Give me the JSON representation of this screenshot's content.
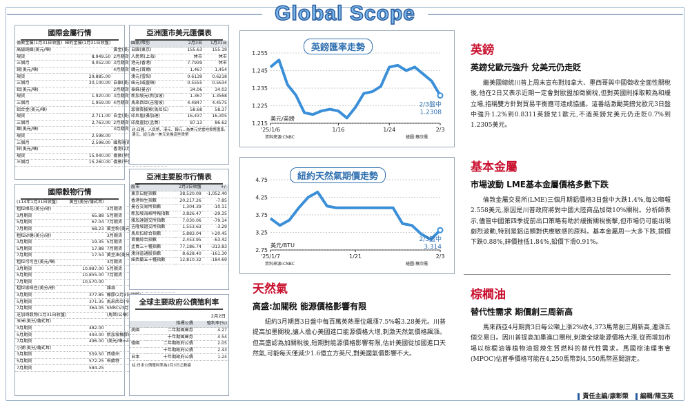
{
  "masthead": "Global Scope",
  "fx_panel": {
    "title": "國際金屬行情",
    "rows": [
      [
        "倫敦金屬(1月31日收盤)",
        "紐約金屬(1月31日收盤)",
        ""
      ],
      [
        "高級銅線(美元/噸)",
        "",
        "黃金(美元/盎司)"
      ],
      [
        "現貨",
        "8,949.50",
        "2月期貨",
        "2,812.50"
      ],
      [
        "三個月",
        "9,052.00",
        "3月期貨",
        "2,822.90"
      ],
      [
        "錫(美元/噸)",
        "",
        "4月期貨",
        "2,835.00"
      ],
      [
        "現貨",
        "29,885.00",
        "",
        ""
      ],
      [
        "三個月",
        "30,100.00",
        "白銀(美元/盎司)",
        ""
      ],
      [
        "鋁(美元/噸)",
        "",
        "2月期貨",
        "31.630"
      ],
      [
        "現貨",
        "1,920.00",
        "3月期貨",
        "32.085"
      ],
      [
        "三個月",
        "1,959.00",
        "4月期貨",
        "31.945"
      ],
      [
        "鋁合金(美元/噸)",
        "",
        "",
        ""
      ],
      [
        "現貨",
        "2,711.00",
        "白金(美元/盎司)",
        ""
      ],
      [
        "三個月",
        "2,763.00",
        "2月期貨",
        "1,033.20"
      ],
      [
        "鎳(美元/噸)",
        "",
        "3月期貨",
        "1,010.50"
      ],
      [
        "現貨",
        "2,598.00",
        "",
        ""
      ],
      [
        "三個月",
        "2,598.00",
        "國際現貨金價",
        ""
      ],
      [
        "鋅(美元/噸)",
        "",
        "香港(2月3日)",
        "2,799.18"
      ],
      [
        "現貨",
        "15,040.00",
        "倫敦(早盤)",
        "2,812.05"
      ],
      [
        "三個月",
        "15,260.00",
        "倫敦(午盤)",
        "2,802.50"
      ]
    ]
  },
  "grain_panel": {
    "title": "國際穀物行情",
    "rows": [
      [
        "(114年1月31日收盤)",
        "黃豆(美分/蒲式耳)",
        ""
      ],
      [
        "粗粒棉花(美分/磅)",
        "",
        "3月期貨",
        "1,042.00"
      ],
      [
        "3月期貨",
        "65.88",
        "5月期貨",
        "1,057.50"
      ],
      [
        "5月期貨",
        "67.04",
        "7月期貨",
        "1,072.25"
      ],
      [
        "7月期貨",
        "68.23",
        "黃豆粉(美元/短噸)",
        ""
      ],
      [
        "粗粒砂糖(美分/磅)",
        "",
        "3月期貨",
        "301.10"
      ],
      [
        "3月期貨",
        "19.35",
        "5月期貨",
        "309.60"
      ],
      [
        "5月期貨",
        "17.88",
        "7月期貨",
        "317.40"
      ],
      [
        "7月期貨",
        "17.54",
        "黃豆油(美分/磅)",
        ""
      ],
      [
        "粗粒可可豆(美元/噸)",
        "",
        "3月期貨",
        "43.11"
      ],
      [
        "3月期貨",
        "10,987.00",
        "5月期貨",
        "43.52"
      ],
      [
        "5月期貨",
        "10,855.00",
        "7月期貨",
        "43.79"
      ],
      [
        "7月期貨",
        "10,570.00",
        "",
        ""
      ],
      [
        "粗粒咖啡豆(美分/磅)",
        "",
        "雜項",
        ""
      ],
      [
        "3月期貨",
        "377.85",
        "橡膠(2月3日收盤)",
        ""
      ],
      [
        "5月期貨",
        "371.35",
        "馬來西亞(令吉/公斤)",
        ""
      ],
      [
        "7月期貨",
        "364.05",
        "SMRCV3月",
        "262.55"
      ],
      [
        "芝加哥穀物(1月31日收盤)",
        "",
        "(馬幣/公噸)",
        "醫務棕櫚"
      ],
      [
        "玉米(美分/蒲式耳)",
        "",
        "",
        ""
      ],
      [
        "3月期貨",
        "482.00",
        "",
        ""
      ],
      [
        "5月期貨",
        "493.00",
        "新加坡橡膠(2月3日)",
        ""
      ],
      [
        "7月期貨",
        "496.00",
        "(美元/噸=42美加侖,",
        "158.98公升)"
      ],
      [
        "小麥(美分/蒲式耳)",
        "",
        "",
        ""
      ],
      [
        "3月期貨",
        "559.50",
        "西德州",
        "74.27"
      ],
      [
        "5月期貨",
        "572.25",
        "布蘭特",
        "76.71"
      ],
      [
        "7月期貨",
        "584.25",
        "",
        ""
      ]
    ]
  },
  "asia_fx": {
    "title": "亞洲匯市美元匯價表",
    "head": [
      "國家/幣別",
      "2月3日",
      "1月31日"
    ],
    "rows": [
      [
        "日圓(東京)",
        "155.63",
        "155.19"
      ],
      [
        "人民幣(上海)",
        "休市",
        "休市"
      ],
      [
        "港元(香港)",
        "7.7939",
        "休市"
      ],
      [
        "韓元(首爾)",
        "1,467",
        "1,454"
      ],
      [
        "澳元(雪梨)",
        "0.6139",
        "0.6218"
      ],
      [
        "紐元(威靈頓)",
        "0.5555",
        "0.5634"
      ],
      [
        "泰銖(曼谷)",
        "34.06",
        "34.03"
      ],
      [
        "新加坡元(新加坡)",
        "1.367",
        "1.3568"
      ],
      [
        "馬來西亞(吉隆坡)",
        "4.4847",
        "4.4575"
      ],
      [
        "菲律賓披索(馬尼拉)",
        "58.68",
        "58.37"
      ],
      [
        "印尼盾(雅加達)",
        "16,437",
        "16,305"
      ],
      [
        "印度盧比(孟買)",
        "87.13",
        "86.62"
      ]
    ],
    "note": "註:日圓、人民幣、港元、韓元…為美元兌當地貨幣匯率;澳元、紐元為一美元兌換這些貨幣"
  },
  "asia_stock": {
    "title": "亞洲主要股市行情表",
    "head": [
      "股市",
      "2月3日收盤",
      "+/-"
    ],
    "rows": [
      [
        "東京日經指數",
        "38,520.09",
        "-1,052.40"
      ],
      [
        "香港恒生指數",
        "20,217.26",
        "-7.85"
      ],
      [
        "曼谷交易所指數",
        "1,304.39",
        "-10.11"
      ],
      [
        "新加坡海峽時報指數",
        "3,826.47",
        "-29.35"
      ],
      [
        "雅加達證交所指數",
        "7,030.06",
        "-79.14"
      ],
      [
        "吉隆坡證交所指數",
        "1,553.63",
        "-3.29"
      ],
      [
        "馬尼拉綜合指數",
        "5,883.04",
        "+20.45"
      ],
      [
        "首爾綜合指數",
        "2,453.95",
        "-63.42"
      ],
      [
        "孟買三十種指數",
        "77,186.74",
        "-313.83"
      ],
      [
        "澳洲普通股指數",
        "8,628.40",
        "-161.30"
      ],
      [
        "紐西蘭五十種指數",
        "12,810.32",
        "-184.69"
      ]
    ]
  },
  "bond": {
    "title": "全球主要政府公債殖利率",
    "date": "2月2日",
    "head": [
      "指標公債",
      "殖利率(%)"
    ],
    "rows": [
      [
        "美國",
        "二年期國庫券",
        "4.27"
      ],
      [
        "",
        "十年期國庫券",
        "4.54"
      ],
      [
        "德國",
        "二年期政府公債",
        "2.05"
      ],
      [
        "",
        "十年期政府公債",
        "2.43"
      ],
      [
        "日本",
        "十年期政府公債",
        "1.24"
      ]
    ],
    "note": "註:日本公債殖利率為2月3日之數據"
  },
  "gbp_chart": {
    "title": "英鎊匯率走勢",
    "unit": "美元/英鎊",
    "source": "資料來源:CNBC",
    "editor": "繪圖:蔡欣儒",
    "callout": "2/3盤中",
    "callout_value": "1.2308",
    "xticks": [
      "'25/1/6",
      "1/16",
      "1/24",
      "2/3"
    ],
    "yticks": [
      "1.255",
      "1.245",
      "1.235",
      "1.225",
      "1.215"
    ]
  },
  "gas_chart": {
    "title": "紐約天然氣期價走勢",
    "unit": "美元/BTU",
    "source": "資料來源:CNBC",
    "editor": "繪圖:蔡欣儒",
    "callout": "2/3盤中",
    "callout_value": "3.314",
    "xticks": [
      "'25/1/7",
      "1/21",
      "2/3"
    ],
    "yticks": [
      "4.75",
      "4.25",
      "3.75",
      "3.25",
      "2.75"
    ]
  },
  "chart_data": [
    {
      "type": "line",
      "title": "英鎊匯率走勢",
      "ylabel": "美元/英鎊",
      "ylim": [
        1.215,
        1.255
      ],
      "x": [
        "1/6",
        "1/7",
        "1/8",
        "1/9",
        "1/10",
        "1/13",
        "1/14",
        "1/15",
        "1/16",
        "1/17",
        "1/20",
        "1/21",
        "1/22",
        "1/23",
        "1/24",
        "1/27",
        "1/28",
        "1/29",
        "1/30",
        "1/31",
        "2/3"
      ],
      "values": [
        1.247,
        1.251,
        1.237,
        1.231,
        1.221,
        1.22,
        1.222,
        1.223,
        1.222,
        1.218,
        1.224,
        1.232,
        1.233,
        1.236,
        1.247,
        1.248,
        1.245,
        1.247,
        1.243,
        1.239,
        1.2308
      ]
    },
    {
      "type": "line",
      "title": "紐約天然氣期價走勢",
      "ylabel": "美元/BTU",
      "ylim": [
        2.75,
        4.75
      ],
      "x": [
        "1/7",
        "1/8",
        "1/9",
        "1/10",
        "1/13",
        "1/14",
        "1/15",
        "1/16",
        "1/17",
        "1/21",
        "1/22",
        "1/23",
        "1/24",
        "1/27",
        "1/28",
        "1/29",
        "1/30",
        "1/31",
        "2/3"
      ],
      "values": [
        3.65,
        3.45,
        3.6,
        3.95,
        4.25,
        4.4,
        4.0,
        3.95,
        3.95,
        3.95,
        3.95,
        3.95,
        3.95,
        3.95,
        3.5,
        3.45,
        3.2,
        3.05,
        3.314
      ]
    }
  ],
  "gbp": {
    "heading": "英鎊",
    "subhead": "英鎊兌歐元強升 兌美元仍走貶",
    "body": "繼美國總統川普上周末宣布對加拿大、墨西哥與中國徵收全面性關稅後,他在2日又表示近期一定會對歐盟加徵關稅,但對英國則採取較為和緩立場,指稱雙方針對貿易平衡應可達成協議。這番話激勵英鎊兌歐元3日盤中強升1.2%到0.8311英鎊兌1歐元,不過英鎊兌美元仍走貶0.7%到1.2305美元。"
  },
  "metal": {
    "heading": "基本金屬",
    "subhead": "市場波動 LME基本金屬價格多數下跌",
    "body": "倫敦金屬交易所(LME)三個月期鋁價格3日盤中大跌1.4%,每公噸報2.558美元,原因是川普政府將對中國大陸商品加徵10%關稅。分析師表示,儘管中國第四季提前出口策略有助於緩衝關稅衝擊,但市場仍可能出現劇烈波動,特別是鋁這類對供應敏感的原料。基本金屬周一大多下跌,銅價下跌0.88%,鋅價挫低1.84%,鉛價下滑0.91%。"
  },
  "gas": {
    "heading": "天然氣",
    "subhead": "高盛:加關稅 能源價格影響有限",
    "body": "紐約3月期貨3日盤中每百萬英熱單位飆漲7.5%報3.28美元。川普提高加墨關稅,讓人擔心美國進口能源價格大增,刺激天然氣價格飆漲。但高盛認為加關稅後,短期對能源價格影響有限,估計美國從加國進口天然氣,可能每天僅減少1.6億立方英尺,對美國氣價影響不大。"
  },
  "palm": {
    "heading": "棕櫚油",
    "subhead": "替代性需求 期價創三周新高",
    "body": "馬來西亞4月期貨3日每公噸上漲2%收4,373馬幣創三周新高,連漲五個交易日。因川普提高加墨進口關稅,刺激全球能源價格大漲,從而增加市場以棕櫚油等植物油提煉生質燃料的替代性需求。馬國棕油理事會(MPOC)估首季價格可能在4,250馬幣到4,550馬幣區間游走。"
  },
  "credit": {
    "editor_label": "責任主編/康彰榮",
    "edit_label": "編輯/陳玉英"
  }
}
